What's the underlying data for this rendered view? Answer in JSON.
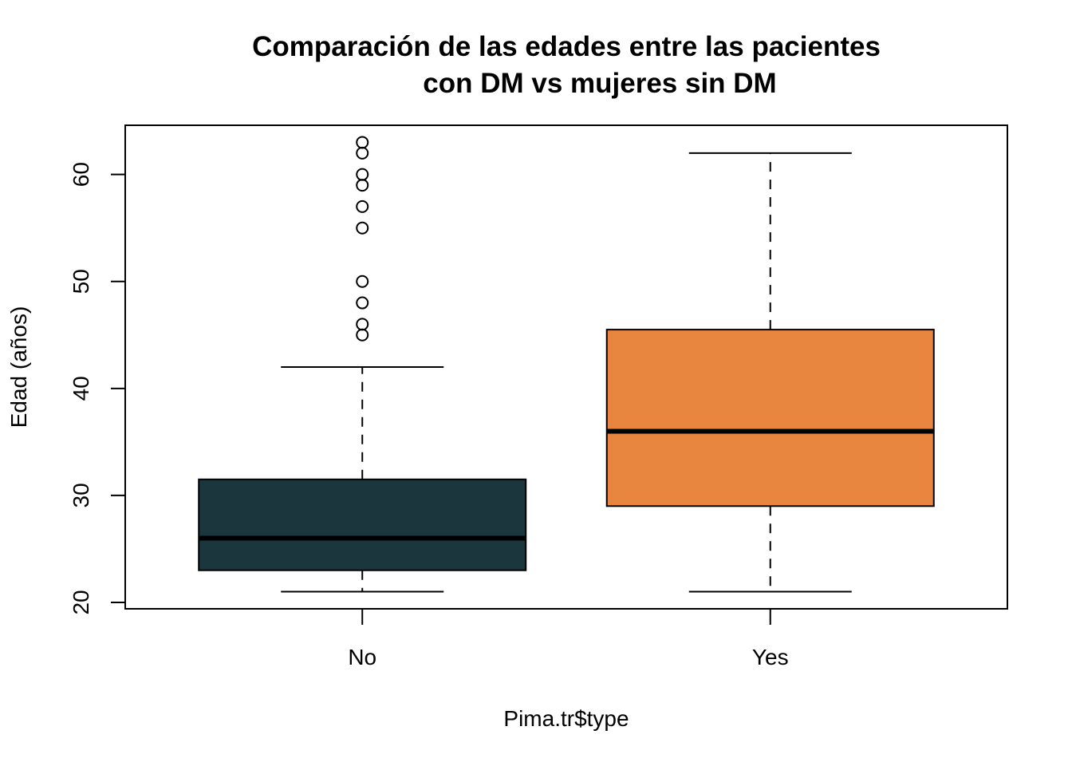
{
  "chart_data": {
    "type": "box",
    "title_line1": "Comparación de las edades entre las pacientes",
    "title_line2": "con DM vs mujeres sin DM",
    "xlabel": "Pima.tr$type",
    "ylabel": "Edad (años)",
    "ylim": [
      19.4,
      64.6
    ],
    "yticks": [
      20,
      30,
      40,
      50,
      60
    ],
    "categories": [
      "No",
      "Yes"
    ],
    "boxes": [
      {
        "name": "No",
        "color": "#1b373d",
        "whisker_low": 21,
        "q1": 23,
        "median": 26,
        "q3": 31.5,
        "whisker_high": 42,
        "outliers": [
          45,
          46,
          48,
          50,
          55,
          57,
          59,
          60,
          62,
          63
        ]
      },
      {
        "name": "Yes",
        "color": "#e8853e",
        "whisker_low": 21,
        "q1": 29,
        "median": 36,
        "q3": 45.5,
        "whisker_high": 62,
        "outliers": []
      }
    ],
    "grid": false,
    "legend": "none"
  }
}
